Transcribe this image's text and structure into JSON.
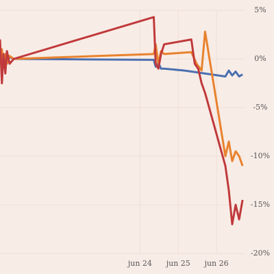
{
  "chart_data": {
    "type": "line",
    "xlim": [
      20.34,
      26.75
    ],
    "xticks": [
      {
        "value": 24,
        "label": "jun 24"
      },
      {
        "value": 25,
        "label": "jun 25"
      },
      {
        "value": 26,
        "label": "jun 26"
      }
    ],
    "ylim": [
      -20,
      5
    ],
    "yticks": [
      {
        "value": 5,
        "label": "5%"
      },
      {
        "value": 0,
        "label": "0%"
      },
      {
        "value": -5,
        "label": "-5%"
      },
      {
        "value": -10,
        "label": "-10%"
      },
      {
        "value": -15,
        "label": "-15%"
      },
      {
        "value": -20,
        "label": "-20%"
      }
    ],
    "grid": true,
    "series": [
      {
        "color": "#4a6fb0",
        "x": [
          20.34,
          20.39,
          20.43,
          20.48,
          20.52,
          20.59,
          20.7,
          24.36,
          24.41,
          24.48,
          24.55,
          24.63,
          25.16,
          25.52,
          26.23,
          26.32,
          26.41,
          26.5,
          26.59,
          26.68
        ],
        "values": [
          0,
          0.5,
          -0.6,
          0.3,
          -0.4,
          0.2,
          0,
          -0.1,
          -0.8,
          -0.4,
          -1.0,
          -1.0,
          -1.2,
          -1.4,
          -1.8,
          -1.2,
          -1.7,
          -1.3,
          -1.8,
          -1.6
        ]
      },
      {
        "color": "#e8822e",
        "x": [
          20.34,
          20.39,
          20.43,
          20.48,
          20.52,
          20.59,
          20.7,
          24.36,
          24.41,
          24.48,
          24.55,
          24.63,
          25.34,
          25.48,
          25.61,
          25.7,
          26.23,
          26.32,
          26.41,
          26.5,
          26.59,
          26.68
        ],
        "values": [
          0.2,
          1.0,
          -0.8,
          0.5,
          -0.5,
          0.3,
          0,
          0.5,
          1.5,
          -0.5,
          0.8,
          0.5,
          0.7,
          -0.5,
          -1.2,
          2.8,
          -10,
          -8.5,
          -10.5,
          -9.5,
          -10,
          -11
        ]
      },
      {
        "color": "#c0393b",
        "x": [
          20.34,
          20.39,
          20.43,
          20.48,
          20.52,
          20.59,
          20.7,
          24.36,
          24.41,
          24.48,
          24.55,
          24.63,
          25.34,
          25.43,
          25.52,
          25.61,
          25.7,
          26.23,
          26.32,
          26.41,
          26.5,
          26.59,
          26.68
        ],
        "values": [
          2,
          -2.5,
          0.5,
          -1.5,
          0.8,
          -0.5,
          0,
          4.3,
          -0.5,
          -1,
          0.5,
          1.5,
          2,
          -0.5,
          -1,
          -2.5,
          -3.5,
          -11,
          -13.5,
          -17,
          -15,
          -16.5,
          -14.5
        ]
      }
    ]
  }
}
